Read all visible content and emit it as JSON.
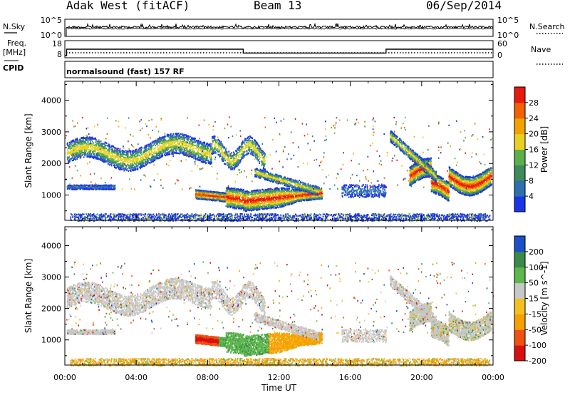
{
  "header": {
    "station": "Adak West (fitACF)",
    "beam": "Beam 13",
    "date": "06/Sep/2014"
  },
  "panel_labels": {
    "nsky": "N.Sky",
    "nsearch": "N.Search",
    "freq": "Freq.",
    "freq_unit": "[MHz]",
    "nave": "Nave",
    "cpid": "CPID",
    "cpid_text": "normalsound (fast) 157 RF"
  },
  "noise_panel": {
    "left_ticks": [
      "10^5",
      "10^0"
    ],
    "right_ticks": [
      "10^5",
      "10^0"
    ]
  },
  "freq_panel": {
    "left_ticks": [
      "18",
      "8"
    ],
    "right_ticks": [
      "60",
      "0"
    ]
  },
  "colors": {
    "power": [
      "#1a34e8",
      "#2d6fb0",
      "#3d8a5a",
      "#5cb04a",
      "#e8d020",
      "#f2a200",
      "#f26000",
      "#e81a10"
    ],
    "velocity": [
      "#d81010",
      "#f05010",
      "#f5a000",
      "#f2c020",
      "#c8c8c8",
      "#5cb84a",
      "#3a8a4a",
      "#1a50c8"
    ],
    "noise_line": "#000000"
  },
  "chart_data": [
    {
      "type": "heatmap",
      "panel": "power",
      "xlabel": "Time UT",
      "ylabel": "Slant Range [km]",
      "x_ticks": [
        "00:00",
        "04:00",
        "08:00",
        "12:00",
        "16:00",
        "20:00",
        "00:00"
      ],
      "y_ticks": [
        1000,
        2000,
        3000,
        4000
      ],
      "ylim": [
        200,
        4600
      ],
      "xlim_hours": [
        0,
        24
      ],
      "colorbar_label": "Power [dB]",
      "colorbar_ticks": [
        4,
        8,
        12,
        16,
        20,
        24,
        28
      ],
      "colorbar_range": [
        0,
        30
      ]
    },
    {
      "type": "heatmap",
      "panel": "velocity",
      "xlabel": "Time UT",
      "ylabel": "Slant Range [km]",
      "x_ticks": [
        "00:00",
        "04:00",
        "08:00",
        "12:00",
        "16:00",
        "20:00",
        "00:00"
      ],
      "y_ticks": [
        1000,
        2000,
        3000,
        4000
      ],
      "ylim": [
        200,
        4600
      ],
      "xlim_hours": [
        0,
        24
      ],
      "colorbar_label": "Velocity [m s^-1]",
      "colorbar_ticks": [
        200,
        100,
        50,
        15,
        -15,
        -50,
        -100,
        -200
      ],
      "colorbar_range": [
        -250,
        250
      ]
    },
    {
      "type": "line",
      "panel": "freq",
      "series": [
        {
          "name": "Freq.",
          "x": [
            0,
            0.1,
            0.1,
            10,
            10,
            18,
            18,
            24
          ],
          "y": [
            8,
            8,
            13,
            13,
            10,
            10,
            13,
            13
          ]
        }
      ]
    }
  ]
}
